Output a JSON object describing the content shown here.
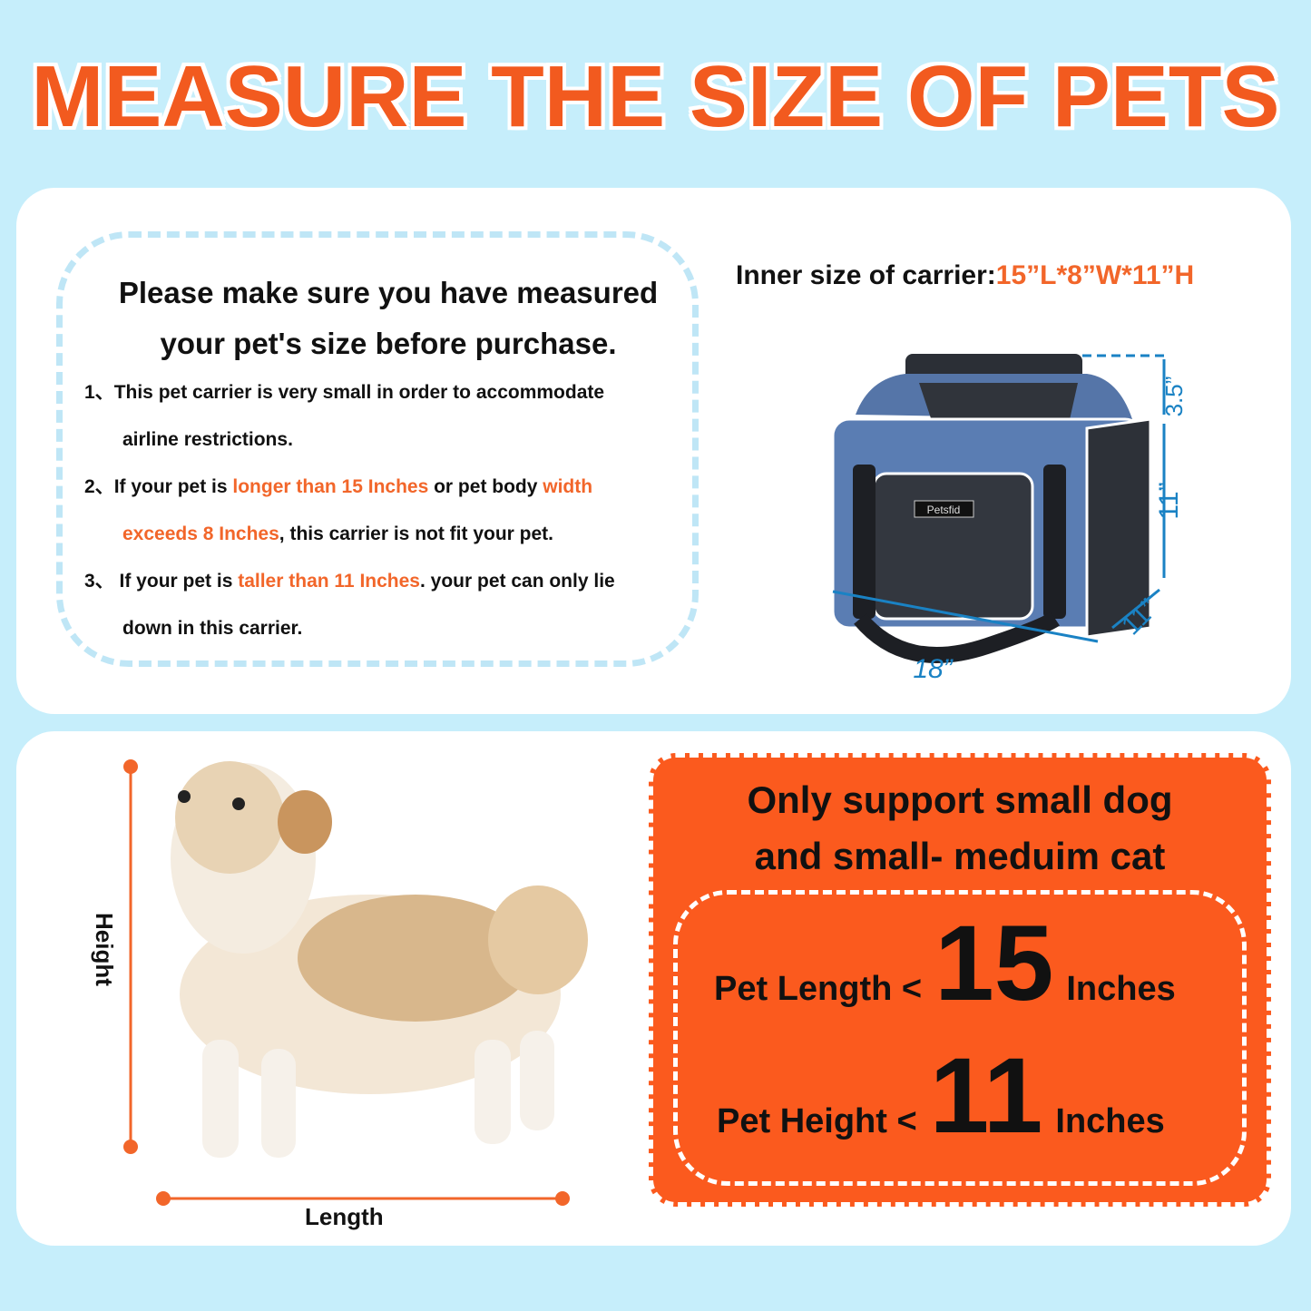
{
  "title": "MEASURE THE SIZE OF PETS",
  "notice": {
    "heading_line1": "Please make sure you have measured",
    "heading_line2": "your pet's size before purchase.",
    "items": [
      {
        "num": "1、",
        "line1": "This pet carrier is very small in order  to accommodate",
        "line2": "airline restrictions."
      },
      {
        "num": "2、",
        "pre": "If your pet is ",
        "hl1": "longer than 15 Inches",
        "mid": " or pet body ",
        "hl2": "width",
        "hl3": "exceeds 8 Inches",
        "post": ", this carrier is not fit your pet."
      },
      {
        "num": "3、",
        "pre": " If your pet is ",
        "hl1": "taller than 11 Inches",
        "post": ". your pet can only lie",
        "line2": "down in this carrier."
      }
    ]
  },
  "carrier": {
    "inner_label": "Inner size of carrier:",
    "inner_value": "15”L*8”W*11”H",
    "dims": {
      "length": "18”",
      "depth": "11”",
      "height": "11”",
      "top": "3.5”"
    },
    "brand": "Petsfid"
  },
  "pet": {
    "height_label": "Height",
    "length_label": "Length"
  },
  "support": {
    "line1": "Only support small dog",
    "line2": "and small- meduim cat",
    "length_label": "Pet Length <",
    "length_value": "15",
    "height_label": "Pet Height <",
    "height_value": "11",
    "unit": "Inches"
  },
  "colors": {
    "orange": "#fb5a1e",
    "bg": "#c6eefb",
    "accent_text": "#f2662a",
    "dim_blue": "#1a82c4"
  }
}
